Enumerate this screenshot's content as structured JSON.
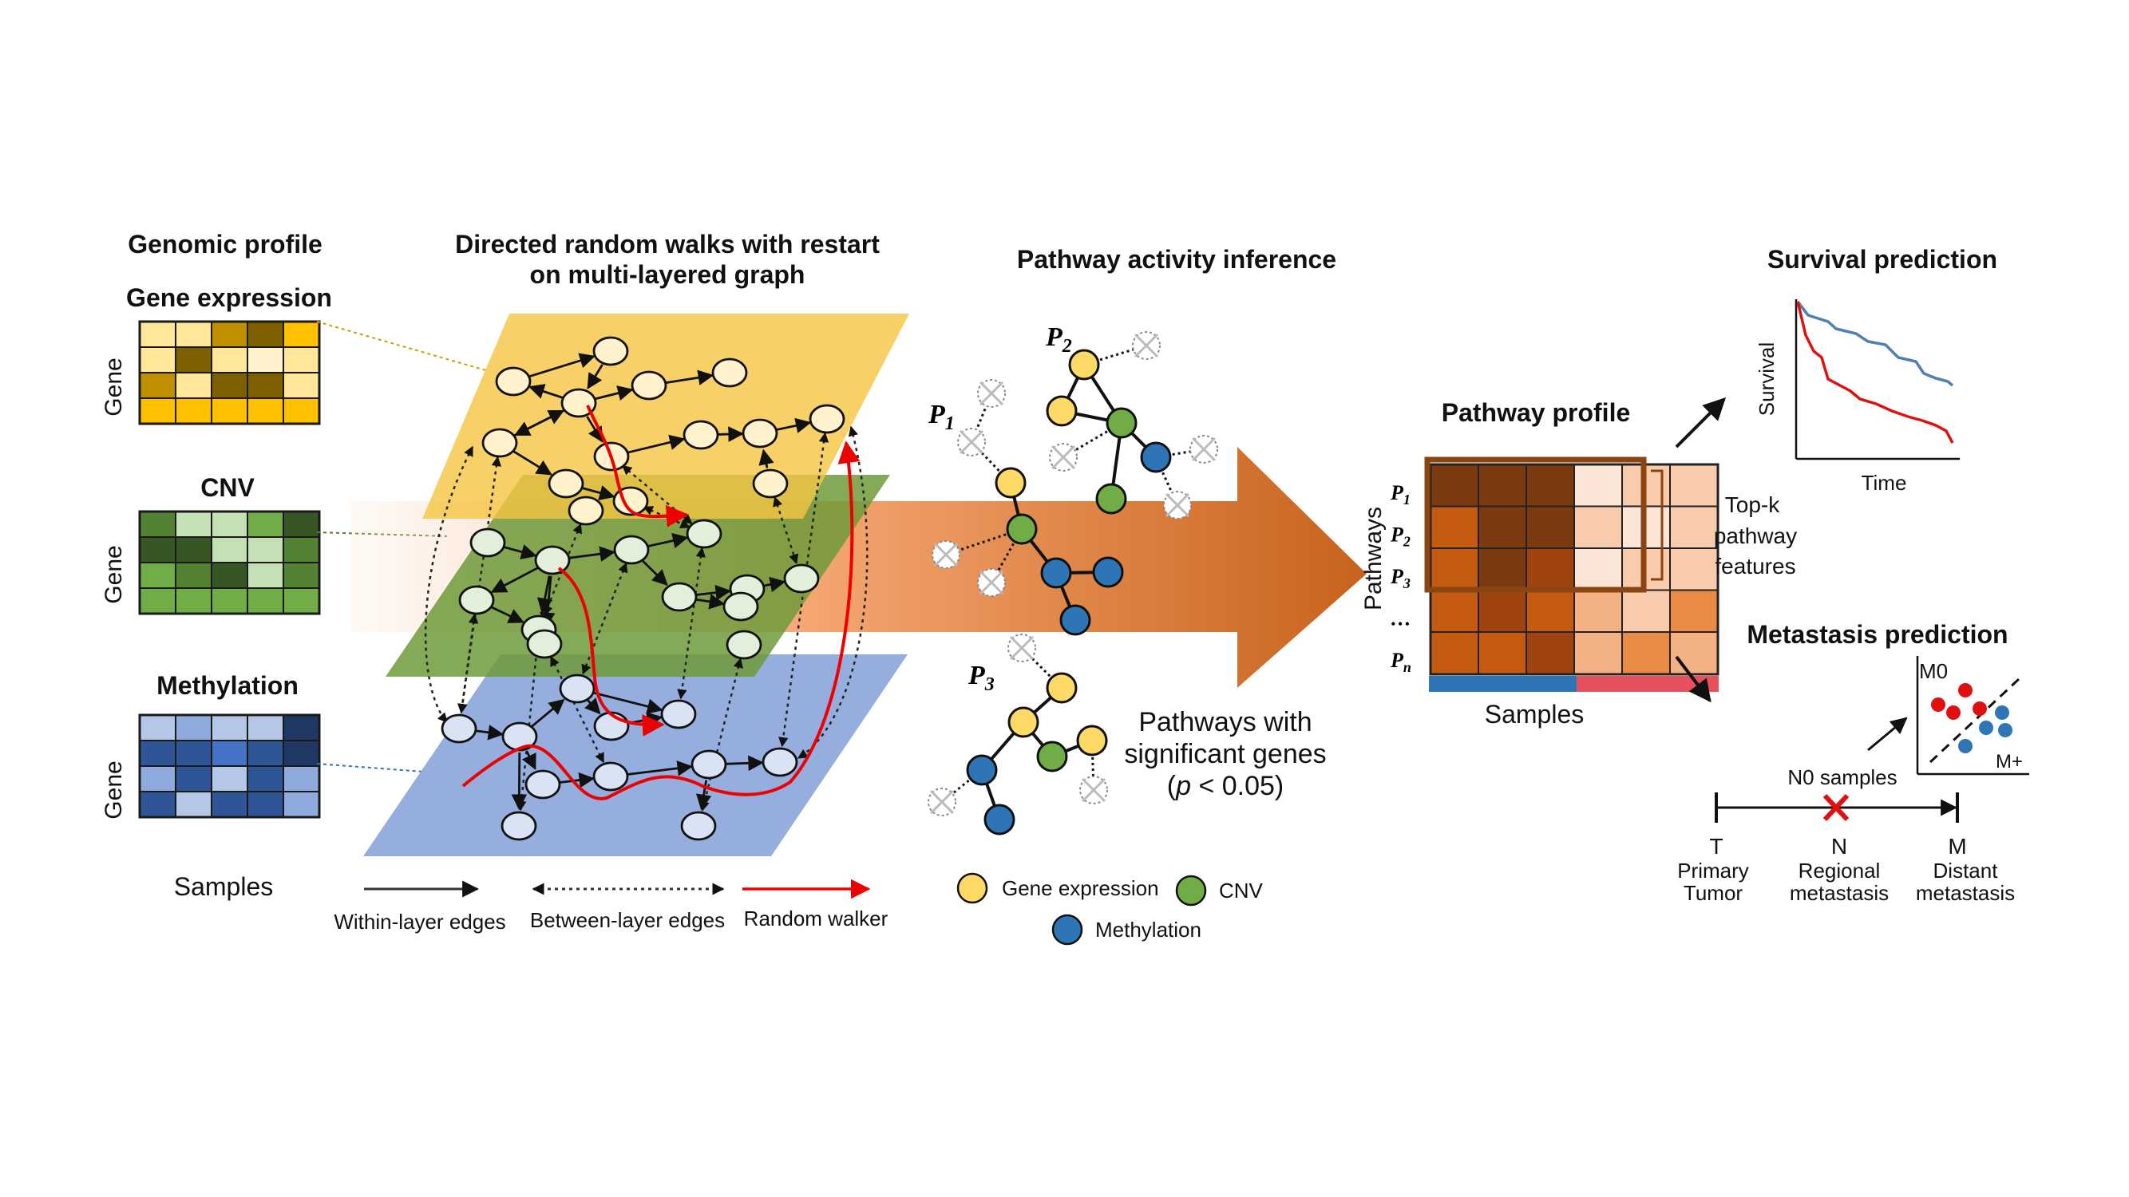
{
  "genomic_profile": {
    "title": "Genomic profile",
    "blocks": [
      {
        "label": "Gene expression",
        "axis": "Gene",
        "color": "#c8a000"
      },
      {
        "label": "CNV",
        "axis": "Gene",
        "color": "#548235"
      },
      {
        "label": "Methylation",
        "axis": "Gene",
        "color": "#7030a0"
      }
    ],
    "xlabel": "Samples"
  },
  "random_walk": {
    "title_line1": "Directed random walks with restart",
    "title_line2": "on multi-layered graph",
    "legend": {
      "within": "Within-layer edges",
      "between": "Between-layer edges",
      "walker": "Random walker"
    }
  },
  "pathway_inference": {
    "title": "Pathway activity inference",
    "pathways": [
      {
        "sym": "P",
        "sub": "1"
      },
      {
        "sym": "P",
        "sub": "2"
      },
      {
        "sym": "P",
        "sub": "3"
      }
    ],
    "note_line1": "Pathways with",
    "note_line2": "significant genes",
    "note_p": "p",
    "note_rest": " < 0.05)",
    "note_open": "(",
    "legend": {
      "gene_expression": "Gene expression",
      "cnv": "CNV",
      "methylation": "Methylation"
    },
    "colors": {
      "gene_expression": "#ffd966",
      "cnv": "#70ad47",
      "methylation": "#2e75b6"
    }
  },
  "pathway_profile": {
    "title": "Pathway profile",
    "ylabel": "Pathways",
    "xlabel": "Samples",
    "rows": [
      {
        "sym": "P",
        "sub": "1"
      },
      {
        "sym": "P",
        "sub": "2"
      },
      {
        "sym": "P",
        "sub": "3"
      },
      {
        "sym": "…",
        "sub": ""
      },
      {
        "sym": "P",
        "sub": "n"
      }
    ],
    "topk_line1": "Top-k",
    "topk_line2": "pathway",
    "topk_line3": "features"
  },
  "survival": {
    "title": "Survival prediction",
    "ylabel": "Survival",
    "xlabel": "Time"
  },
  "metastasis": {
    "title": "Metastasis prediction",
    "m0": "M0",
    "mplus": "M+",
    "n0": "N0 samples",
    "stages": [
      {
        "letter": "T",
        "line1": "Primary",
        "line2": "Tumor"
      },
      {
        "letter": "N",
        "line1": "Regional",
        "line2": "metastasis"
      },
      {
        "letter": "M",
        "line1": "Distant",
        "line2": "metastasis"
      }
    ]
  }
}
